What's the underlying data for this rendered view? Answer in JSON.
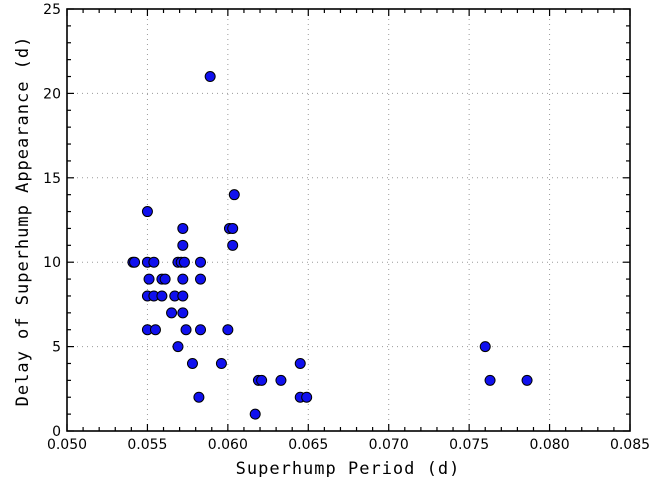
{
  "chart_data": {
    "type": "scatter",
    "title": "",
    "xlabel": "Superhump Period (d)",
    "ylabel": "Delay of Superhump Appearance (d)",
    "xlim": [
      0.05,
      0.085
    ],
    "ylim": [
      0,
      25
    ],
    "x_ticks": [
      "0.050",
      "0.055",
      "0.060",
      "0.065",
      "0.070",
      "0.075",
      "0.080",
      "0.085"
    ],
    "y_ticks": [
      "0",
      "5",
      "10",
      "15",
      "20",
      "25"
    ],
    "grid": true,
    "marker_color": "#1010ee",
    "points": [
      {
        "x": 0.0541,
        "y": 10
      },
      {
        "x": 0.0542,
        "y": 10
      },
      {
        "x": 0.055,
        "y": 13
      },
      {
        "x": 0.055,
        "y": 10
      },
      {
        "x": 0.0551,
        "y": 9
      },
      {
        "x": 0.055,
        "y": 8
      },
      {
        "x": 0.055,
        "y": 6
      },
      {
        "x": 0.0554,
        "y": 10
      },
      {
        "x": 0.0554,
        "y": 8
      },
      {
        "x": 0.0555,
        "y": 6
      },
      {
        "x": 0.0559,
        "y": 9
      },
      {
        "x": 0.0561,
        "y": 9
      },
      {
        "x": 0.0559,
        "y": 8
      },
      {
        "x": 0.0565,
        "y": 7
      },
      {
        "x": 0.0567,
        "y": 8
      },
      {
        "x": 0.0569,
        "y": 10
      },
      {
        "x": 0.0569,
        "y": 5
      },
      {
        "x": 0.0572,
        "y": 12
      },
      {
        "x": 0.0572,
        "y": 11
      },
      {
        "x": 0.0571,
        "y": 10
      },
      {
        "x": 0.0573,
        "y": 10
      },
      {
        "x": 0.0572,
        "y": 9
      },
      {
        "x": 0.0572,
        "y": 8
      },
      {
        "x": 0.0572,
        "y": 7
      },
      {
        "x": 0.0574,
        "y": 6
      },
      {
        "x": 0.0578,
        "y": 4
      },
      {
        "x": 0.0583,
        "y": 10
      },
      {
        "x": 0.0583,
        "y": 9
      },
      {
        "x": 0.0583,
        "y": 6
      },
      {
        "x": 0.0582,
        "y": 2
      },
      {
        "x": 0.0589,
        "y": 21
      },
      {
        "x": 0.0596,
        "y": 4
      },
      {
        "x": 0.06,
        "y": 6
      },
      {
        "x": 0.0601,
        "y": 12
      },
      {
        "x": 0.0603,
        "y": 12
      },
      {
        "x": 0.0603,
        "y": 11
      },
      {
        "x": 0.0604,
        "y": 14
      },
      {
        "x": 0.0617,
        "y": 1
      },
      {
        "x": 0.0619,
        "y": 3
      },
      {
        "x": 0.0621,
        "y": 3
      },
      {
        "x": 0.0633,
        "y": 3
      },
      {
        "x": 0.0645,
        "y": 4
      },
      {
        "x": 0.0645,
        "y": 2
      },
      {
        "x": 0.0649,
        "y": 2
      },
      {
        "x": 0.076,
        "y": 5
      },
      {
        "x": 0.0763,
        "y": 3
      },
      {
        "x": 0.0786,
        "y": 3
      }
    ]
  }
}
